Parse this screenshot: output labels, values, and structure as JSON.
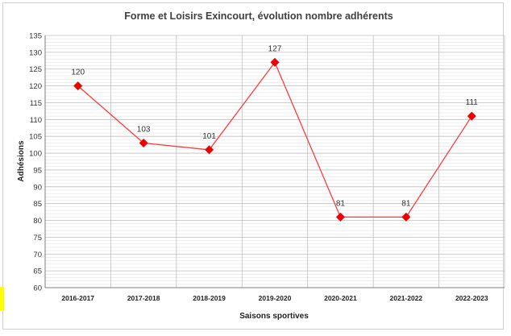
{
  "chart_data": {
    "type": "line",
    "title": "Forme et Loisirs Exincourt, évolution nombre adhérents",
    "xlabel": "Saisons  sportives",
    "ylabel": "Adhésions",
    "categories": [
      "2016-2017",
      "2017-2018",
      "2018-2019",
      "2019-2020",
      "2020-2021",
      "2021-2022",
      "2022-2023"
    ],
    "series": [
      {
        "values": [
          120,
          103,
          101,
          127,
          81,
          81,
          111
        ]
      }
    ],
    "data_labels": [
      "120",
      "103",
      "101",
      "127",
      "81",
      "81",
      "111"
    ],
    "ylim": [
      60,
      135
    ],
    "y_major_step": 5,
    "y_minor_step": 1,
    "y_ticks": [
      "60",
      "65",
      "70",
      "75",
      "80",
      "85",
      "90",
      "95",
      "100",
      "105",
      "110",
      "115",
      "120",
      "125",
      "130",
      "135"
    ],
    "grid": true,
    "legend": "none",
    "colors": {
      "line": "#ff3b3b",
      "marker": "#ee0000",
      "major_grid": "#bfbfbf",
      "minor_grid": "#e4e4e4",
      "axis": "#7f7f7f"
    }
  }
}
